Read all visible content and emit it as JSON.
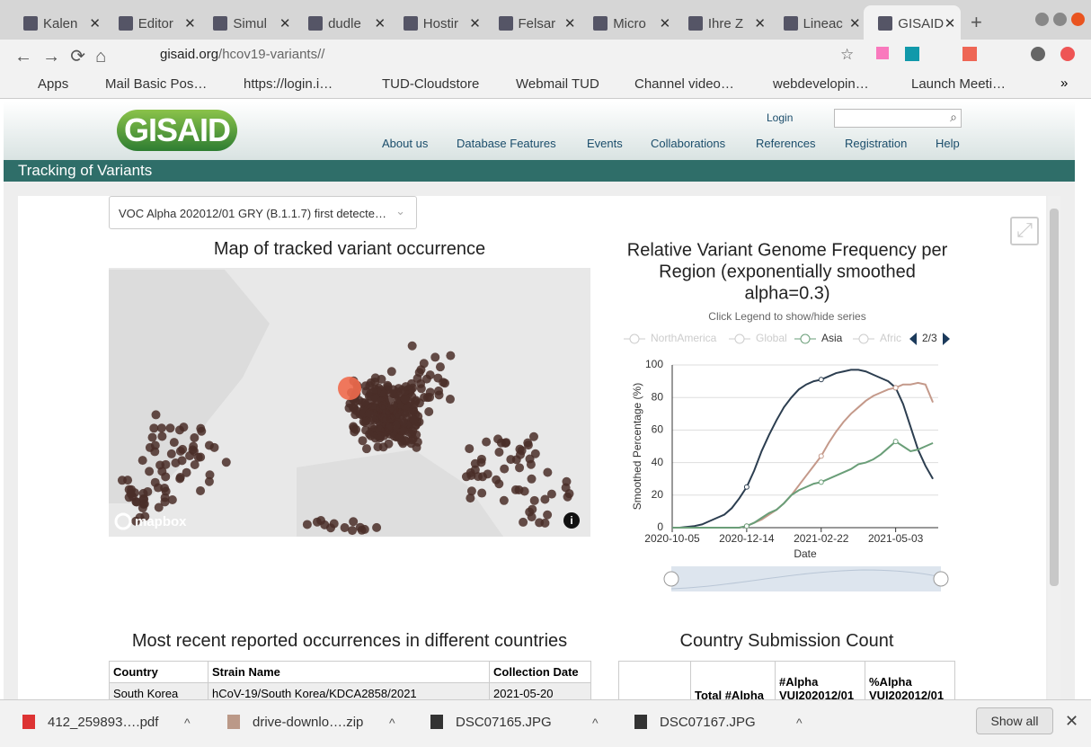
{
  "browser": {
    "tabs": [
      "Kalen",
      "Editor",
      "Simul",
      "dudle",
      "Hostir",
      "Felsar",
      "Micro",
      "Ihre Z",
      "Lineac",
      "GISAID"
    ],
    "address": {
      "host": "gisaid.org",
      "path": "/hcov19-variants//"
    },
    "bookmarks": [
      "Apps",
      "Mail Basic Pos…",
      "https://login.i…",
      "TUD-Cloudstore",
      "Webmail TUD",
      "Channel video…",
      "webdevelopin…",
      "Launch Meeti…"
    ],
    "downloads": [
      "412_259893….pdf",
      "drive-downlo….zip",
      "DSC07165.JPG",
      "DSC07167.JPG"
    ],
    "show_all": "Show all"
  },
  "header": {
    "logo": "GISAID",
    "login": "Login",
    "nav": [
      "About us",
      "Database Features",
      "Events",
      "Collaborations",
      "References",
      "Registration",
      "Help"
    ],
    "banner": "Tracking of Variants"
  },
  "selector": "VOC Alpha 202012/01 GRY (B.1.1.7) first detecte…",
  "map": {
    "title": "Map of tracked variant occurrence",
    "attribution": "mapbox"
  },
  "chart_data": {
    "type": "line",
    "title": [
      "Relative Variant Genome Frequency per",
      "Region (exponentially smoothed",
      "alpha=0.3)"
    ],
    "subtitle": "Click Legend to show/hide series",
    "legend": {
      "items": [
        {
          "name": "NorthAmerica",
          "visible": false
        },
        {
          "name": "Global",
          "visible": false
        },
        {
          "name": "Asia",
          "visible": true
        },
        {
          "name": "Afric",
          "visible": false
        }
      ],
      "page": "2/3"
    },
    "x_label": "Date",
    "y_label": "Smoothed Percentage (%)",
    "x": [
      "2020-10-05",
      "2020-10-12",
      "2020-10-19",
      "2020-10-26",
      "2020-11-02",
      "2020-11-09",
      "2020-11-16",
      "2020-11-23",
      "2020-11-30",
      "2020-12-07",
      "2020-12-14",
      "2020-12-21",
      "2020-12-28",
      "2021-01-04",
      "2021-01-11",
      "2021-01-18",
      "2021-01-25",
      "2021-02-01",
      "2021-02-08",
      "2021-02-15",
      "2021-02-22",
      "2021-03-01",
      "2021-03-08",
      "2021-03-15",
      "2021-03-22",
      "2021-03-29",
      "2021-04-05",
      "2021-04-12",
      "2021-04-19",
      "2021-04-26",
      "2021-05-03",
      "2021-05-10",
      "2021-05-17",
      "2021-05-24",
      "2021-05-31",
      "2021-06-07"
    ],
    "series": [
      {
        "color": "#2c3e50",
        "values": [
          0,
          0,
          0.5,
          1,
          2,
          4,
          6,
          8,
          12,
          18,
          25,
          35,
          47,
          57,
          66,
          74,
          80,
          85,
          88,
          90,
          91,
          93,
          95,
          96,
          97,
          97,
          96,
          94,
          92,
          90,
          86,
          76,
          62,
          48,
          38,
          30
        ]
      },
      {
        "color": "#c4998a",
        "values": [
          0,
          0,
          0,
          0,
          0,
          0,
          0,
          0,
          0,
          0,
          1,
          3,
          5,
          8,
          11,
          15,
          20,
          26,
          32,
          38,
          44,
          52,
          59,
          65,
          70,
          74,
          78,
          81,
          83,
          85,
          86,
          88,
          88,
          89,
          88,
          77
        ]
      },
      {
        "name": "Asia",
        "color": "#6a9e78",
        "values": [
          0,
          0,
          0,
          0,
          0,
          0,
          0,
          0,
          0,
          0,
          1,
          3,
          6,
          9,
          11,
          15,
          20,
          23,
          25,
          27,
          28,
          30,
          32,
          34,
          36,
          39,
          40,
          42,
          45,
          49,
          53,
          50,
          47,
          48,
          50,
          52
        ]
      }
    ],
    "xlim": [
      "2020-10-05",
      "2021-06-12"
    ],
    "xticks": [
      "2020-10-05",
      "2020-12-14",
      "2021-02-22",
      "2021-05-03"
    ],
    "ylim": [
      0,
      100
    ],
    "yticks": [
      0,
      20,
      40,
      60,
      80,
      100
    ],
    "grid": true
  },
  "tables": {
    "occurrences": {
      "title": "Most recent reported occurrences in different countries",
      "header": [
        "Country",
        "Strain Name",
        "Collection Date"
      ],
      "rows": [
        [
          "South Korea",
          "hCoV-19/South Korea/KDCA2858/2021",
          "2021-05-20"
        ]
      ]
    },
    "submissions": {
      "title": "Country Submission Count",
      "header": [
        "Total #Alpha",
        "#Alpha VUI202012/01",
        "%Alpha VUI202012/01"
      ]
    }
  }
}
